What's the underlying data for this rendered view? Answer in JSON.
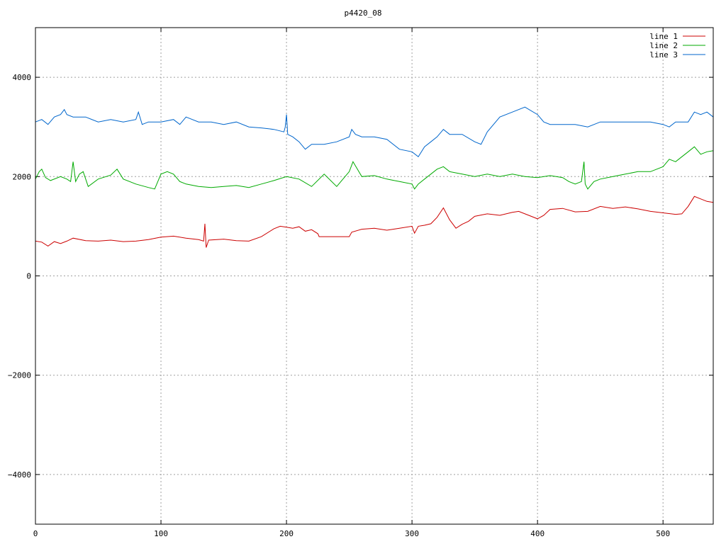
{
  "chart_data": {
    "type": "line",
    "title": "p4420_08",
    "xlim": [
      0,
      540
    ],
    "ylim": [
      -5000,
      5000
    ],
    "x_ticks": [
      0,
      100,
      200,
      300,
      400,
      500
    ],
    "y_ticks": [
      -4000,
      -2000,
      0,
      2000,
      4000
    ],
    "grid": true,
    "legend_position": "top-right",
    "series": [
      {
        "name": "line 1",
        "color": "#cc0000",
        "points": [
          [
            0,
            700
          ],
          [
            5,
            680
          ],
          [
            10,
            600
          ],
          [
            15,
            690
          ],
          [
            20,
            650
          ],
          [
            25,
            700
          ],
          [
            30,
            760
          ],
          [
            40,
            710
          ],
          [
            50,
            700
          ],
          [
            60,
            720
          ],
          [
            70,
            690
          ],
          [
            80,
            700
          ],
          [
            90,
            730
          ],
          [
            100,
            780
          ],
          [
            110,
            800
          ],
          [
            120,
            760
          ],
          [
            130,
            730
          ],
          [
            134,
            700
          ],
          [
            135,
            1050
          ],
          [
            136,
            570
          ],
          [
            138,
            720
          ],
          [
            150,
            740
          ],
          [
            160,
            710
          ],
          [
            170,
            700
          ],
          [
            180,
            790
          ],
          [
            190,
            950
          ],
          [
            195,
            1000
          ],
          [
            200,
            980
          ],
          [
            205,
            960
          ],
          [
            210,
            990
          ],
          [
            215,
            900
          ],
          [
            220,
            930
          ],
          [
            225,
            850
          ],
          [
            226,
            790
          ],
          [
            245,
            790
          ],
          [
            250,
            790
          ],
          [
            252,
            880
          ],
          [
            260,
            940
          ],
          [
            270,
            960
          ],
          [
            280,
            920
          ],
          [
            290,
            960
          ],
          [
            300,
            1000
          ],
          [
            302,
            860
          ],
          [
            305,
            1000
          ],
          [
            310,
            1020
          ],
          [
            315,
            1050
          ],
          [
            320,
            1180
          ],
          [
            325,
            1370
          ],
          [
            330,
            1130
          ],
          [
            335,
            960
          ],
          [
            340,
            1040
          ],
          [
            345,
            1100
          ],
          [
            350,
            1200
          ],
          [
            360,
            1250
          ],
          [
            370,
            1220
          ],
          [
            380,
            1280
          ],
          [
            385,
            1300
          ],
          [
            390,
            1250
          ],
          [
            395,
            1200
          ],
          [
            400,
            1150
          ],
          [
            405,
            1220
          ],
          [
            410,
            1340
          ],
          [
            420,
            1360
          ],
          [
            430,
            1290
          ],
          [
            440,
            1300
          ],
          [
            450,
            1400
          ],
          [
            460,
            1360
          ],
          [
            470,
            1390
          ],
          [
            480,
            1350
          ],
          [
            490,
            1300
          ],
          [
            500,
            1270
          ],
          [
            510,
            1240
          ],
          [
            515,
            1250
          ],
          [
            520,
            1400
          ],
          [
            525,
            1600
          ],
          [
            530,
            1550
          ],
          [
            535,
            1500
          ],
          [
            540,
            1480
          ]
        ]
      },
      {
        "name": "line 2",
        "color": "#00aa00",
        "points": [
          [
            0,
            1950
          ],
          [
            3,
            2100
          ],
          [
            5,
            2150
          ],
          [
            8,
            1980
          ],
          [
            12,
            1920
          ],
          [
            20,
            2000
          ],
          [
            25,
            1950
          ],
          [
            28,
            1900
          ],
          [
            30,
            2300
          ],
          [
            32,
            1900
          ],
          [
            35,
            2050
          ],
          [
            38,
            2100
          ],
          [
            42,
            1800
          ],
          [
            50,
            1950
          ],
          [
            60,
            2030
          ],
          [
            65,
            2150
          ],
          [
            70,
            1950
          ],
          [
            80,
            1850
          ],
          [
            90,
            1780
          ],
          [
            95,
            1750
          ],
          [
            100,
            2050
          ],
          [
            105,
            2100
          ],
          [
            110,
            2050
          ],
          [
            115,
            1900
          ],
          [
            120,
            1850
          ],
          [
            130,
            1800
          ],
          [
            140,
            1780
          ],
          [
            150,
            1800
          ],
          [
            160,
            1820
          ],
          [
            170,
            1780
          ],
          [
            180,
            1850
          ],
          [
            190,
            1920
          ],
          [
            200,
            2000
          ],
          [
            210,
            1950
          ],
          [
            220,
            1800
          ],
          [
            230,
            2050
          ],
          [
            240,
            1800
          ],
          [
            250,
            2100
          ],
          [
            253,
            2300
          ],
          [
            260,
            2000
          ],
          [
            270,
            2020
          ],
          [
            280,
            1950
          ],
          [
            290,
            1900
          ],
          [
            300,
            1850
          ],
          [
            302,
            1750
          ],
          [
            305,
            1850
          ],
          [
            310,
            1950
          ],
          [
            320,
            2150
          ],
          [
            325,
            2200
          ],
          [
            330,
            2100
          ],
          [
            340,
            2050
          ],
          [
            350,
            2000
          ],
          [
            360,
            2050
          ],
          [
            370,
            2000
          ],
          [
            380,
            2050
          ],
          [
            390,
            2000
          ],
          [
            400,
            1980
          ],
          [
            410,
            2020
          ],
          [
            420,
            1980
          ],
          [
            425,
            1900
          ],
          [
            430,
            1850
          ],
          [
            435,
            1900
          ],
          [
            437,
            2300
          ],
          [
            438,
            1850
          ],
          [
            440,
            1750
          ],
          [
            445,
            1900
          ],
          [
            450,
            1950
          ],
          [
            460,
            2000
          ],
          [
            470,
            2050
          ],
          [
            480,
            2100
          ],
          [
            490,
            2100
          ],
          [
            500,
            2200
          ],
          [
            505,
            2350
          ],
          [
            510,
            2300
          ],
          [
            515,
            2400
          ],
          [
            520,
            2500
          ],
          [
            525,
            2600
          ],
          [
            530,
            2450
          ],
          [
            535,
            2500
          ],
          [
            540,
            2520
          ]
        ]
      },
      {
        "name": "line 3",
        "color": "#0066cc",
        "points": [
          [
            0,
            3100
          ],
          [
            5,
            3150
          ],
          [
            10,
            3050
          ],
          [
            15,
            3200
          ],
          [
            20,
            3250
          ],
          [
            23,
            3350
          ],
          [
            25,
            3250
          ],
          [
            30,
            3200
          ],
          [
            40,
            3200
          ],
          [
            50,
            3100
          ],
          [
            60,
            3150
          ],
          [
            70,
            3100
          ],
          [
            80,
            3150
          ],
          [
            82,
            3300
          ],
          [
            85,
            3050
          ],
          [
            90,
            3100
          ],
          [
            100,
            3100
          ],
          [
            110,
            3150
          ],
          [
            115,
            3050
          ],
          [
            120,
            3200
          ],
          [
            130,
            3100
          ],
          [
            140,
            3100
          ],
          [
            150,
            3050
          ],
          [
            160,
            3100
          ],
          [
            170,
            3000
          ],
          [
            180,
            2980
          ],
          [
            190,
            2950
          ],
          [
            198,
            2900
          ],
          [
            199,
            3000
          ],
          [
            200,
            3250
          ],
          [
            201,
            2850
          ],
          [
            205,
            2800
          ],
          [
            210,
            2700
          ],
          [
            215,
            2550
          ],
          [
            220,
            2650
          ],
          [
            230,
            2650
          ],
          [
            240,
            2700
          ],
          [
            250,
            2800
          ],
          [
            252,
            2950
          ],
          [
            255,
            2850
          ],
          [
            260,
            2800
          ],
          [
            270,
            2800
          ],
          [
            280,
            2750
          ],
          [
            290,
            2550
          ],
          [
            300,
            2500
          ],
          [
            305,
            2400
          ],
          [
            310,
            2600
          ],
          [
            315,
            2700
          ],
          [
            320,
            2800
          ],
          [
            325,
            2950
          ],
          [
            330,
            2850
          ],
          [
            340,
            2850
          ],
          [
            350,
            2700
          ],
          [
            355,
            2650
          ],
          [
            360,
            2900
          ],
          [
            370,
            3200
          ],
          [
            380,
            3300
          ],
          [
            390,
            3400
          ],
          [
            400,
            3250
          ],
          [
            405,
            3100
          ],
          [
            410,
            3050
          ],
          [
            420,
            3050
          ],
          [
            430,
            3050
          ],
          [
            440,
            3000
          ],
          [
            450,
            3100
          ],
          [
            460,
            3100
          ],
          [
            470,
            3100
          ],
          [
            480,
            3100
          ],
          [
            490,
            3100
          ],
          [
            500,
            3050
          ],
          [
            505,
            3000
          ],
          [
            510,
            3100
          ],
          [
            515,
            3100
          ],
          [
            520,
            3100
          ],
          [
            525,
            3300
          ],
          [
            530,
            3250
          ],
          [
            535,
            3300
          ],
          [
            540,
            3200
          ]
        ]
      }
    ]
  }
}
